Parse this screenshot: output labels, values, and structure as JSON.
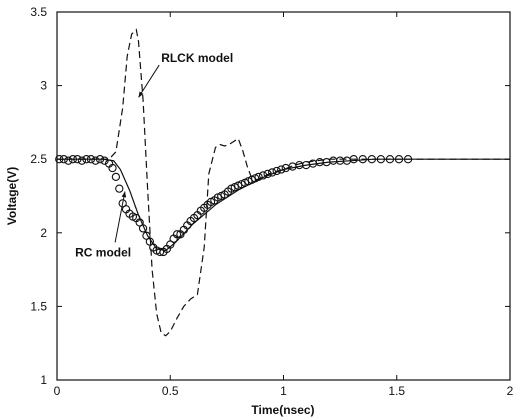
{
  "chart_data": {
    "type": "line",
    "title": "",
    "xlabel": "Time(nsec)",
    "ylabel": "Voltage(V)",
    "xlim": [
      0,
      2
    ],
    "ylim": [
      1,
      3.5
    ],
    "x_ticks": [
      0,
      0.5,
      1,
      1.5,
      2
    ],
    "y_ticks": [
      1,
      1.5,
      2,
      2.5,
      3,
      3.5
    ],
    "grid": false,
    "legend": "none",
    "series": [
      {
        "style": "solid",
        "color": "#111111",
        "x": [
          0,
          0.2,
          0.25,
          0.28,
          0.32,
          0.36,
          0.4,
          0.44,
          0.48,
          0.52,
          0.6,
          0.7,
          0.8,
          0.9,
          1.0,
          1.1,
          1.2,
          1.3,
          1.4,
          1.6,
          2.0
        ],
        "y": [
          2.5,
          2.5,
          2.49,
          2.43,
          2.29,
          2.12,
          1.98,
          1.89,
          1.88,
          1.93,
          2.06,
          2.19,
          2.29,
          2.37,
          2.43,
          2.46,
          2.48,
          2.49,
          2.5,
          2.5,
          2.5
        ]
      },
      {
        "style": "dashed",
        "color": "#111111",
        "x": [
          0,
          0.23,
          0.26,
          0.29,
          0.31,
          0.33,
          0.35,
          0.36,
          0.38,
          0.4,
          0.42,
          0.44,
          0.46,
          0.48,
          0.5,
          0.53,
          0.56,
          0.59,
          0.62,
          0.65,
          0.67,
          0.7,
          0.72,
          0.74,
          0.76,
          0.78,
          0.8,
          0.82,
          0.84,
          0.86,
          0.88,
          0.91,
          0.95,
          1.0,
          1.05,
          1.1,
          1.15,
          1.2,
          1.3,
          1.4,
          1.6,
          2.0
        ],
        "y": [
          2.5,
          2.5,
          2.55,
          2.85,
          3.2,
          3.35,
          3.38,
          3.3,
          2.9,
          2.3,
          1.75,
          1.45,
          1.32,
          1.3,
          1.33,
          1.42,
          1.5,
          1.55,
          1.58,
          1.9,
          2.4,
          2.58,
          2.6,
          2.59,
          2.6,
          2.62,
          2.64,
          2.56,
          2.45,
          2.37,
          2.36,
          2.38,
          2.41,
          2.43,
          2.46,
          2.48,
          2.49,
          2.5,
          2.5,
          2.5,
          2.5,
          2.5
        ]
      },
      {
        "style": "markers",
        "marker": "circle",
        "color": "#111111",
        "x": [
          0.01,
          0.03,
          0.05,
          0.07,
          0.09,
          0.11,
          0.13,
          0.15,
          0.17,
          0.19,
          0.21,
          0.23,
          0.245,
          0.26,
          0.275,
          0.29,
          0.305,
          0.32,
          0.335,
          0.35,
          0.365,
          0.38,
          0.395,
          0.41,
          0.425,
          0.44,
          0.455,
          0.47,
          0.485,
          0.5,
          0.515,
          0.53,
          0.545,
          0.56,
          0.575,
          0.59,
          0.605,
          0.62,
          0.635,
          0.65,
          0.665,
          0.68,
          0.695,
          0.71,
          0.725,
          0.74,
          0.755,
          0.77,
          0.785,
          0.8,
          0.815,
          0.83,
          0.845,
          0.86,
          0.875,
          0.89,
          0.91,
          0.93,
          0.95,
          0.97,
          0.99,
          1.01,
          1.04,
          1.07,
          1.1,
          1.13,
          1.16,
          1.19,
          1.22,
          1.25,
          1.28,
          1.31,
          1.35,
          1.39,
          1.43,
          1.47,
          1.51,
          1.55
        ],
        "y": [
          2.5,
          2.5,
          2.49,
          2.5,
          2.5,
          2.49,
          2.5,
          2.5,
          2.49,
          2.5,
          2.49,
          2.47,
          2.44,
          2.38,
          2.3,
          2.2,
          2.16,
          2.13,
          2.11,
          2.1,
          2.07,
          2.03,
          1.98,
          1.94,
          1.9,
          1.88,
          1.87,
          1.87,
          1.89,
          1.92,
          1.96,
          1.99,
          1.99,
          2.02,
          2.05,
          2.08,
          2.1,
          2.12,
          2.15,
          2.17,
          2.19,
          2.21,
          2.22,
          2.24,
          2.25,
          2.26,
          2.28,
          2.3,
          2.31,
          2.32,
          2.33,
          2.34,
          2.35,
          2.36,
          2.37,
          2.38,
          2.39,
          2.4,
          2.41,
          2.42,
          2.43,
          2.44,
          2.45,
          2.46,
          2.46,
          2.47,
          2.48,
          2.48,
          2.49,
          2.49,
          2.49,
          2.5,
          2.5,
          2.5,
          2.5,
          2.5,
          2.5,
          2.5
        ]
      }
    ],
    "annotations": [
      {
        "text": "RLCK model",
        "x": 0.46,
        "y": 3.16,
        "arrow_to": [
          0.36,
          2.92
        ]
      },
      {
        "text": "RC model",
        "x": 0.08,
        "y": 1.84,
        "arrow_to": [
          0.3,
          2.28
        ]
      }
    ]
  }
}
